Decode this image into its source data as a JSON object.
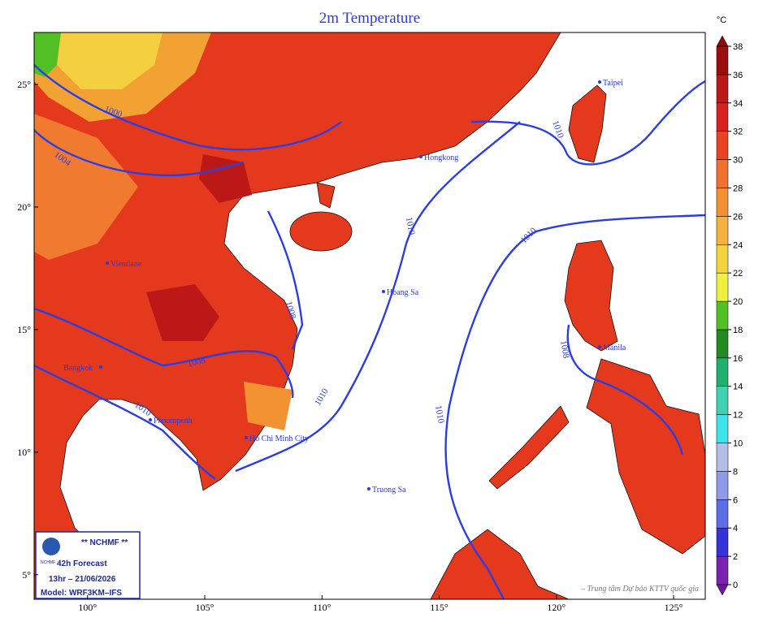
{
  "title": "2m Temperature",
  "colorbar": {
    "unit": "°C",
    "levels": [
      0,
      2,
      4,
      6,
      8,
      10,
      12,
      14,
      16,
      18,
      20,
      22,
      24,
      26,
      28,
      30,
      32,
      34,
      36,
      38
    ],
    "colors": [
      "#7b22b0",
      "#3434d8",
      "#5a6ee6",
      "#8c9ae8",
      "#b4bce8",
      "#3ee4ec",
      "#3ed2b2",
      "#22b070",
      "#228a22",
      "#52c024",
      "#eef23e",
      "#f4d43e",
      "#f4b23e",
      "#f29232",
      "#f07030",
      "#e84422",
      "#d82222",
      "#bc1818",
      "#9a0e0e"
    ],
    "low_color": "#6a1a9a",
    "high_color": "#8a0a0a"
  },
  "lon_lim": [
    97.72,
    126.35
  ],
  "lat_lim": [
    4.0,
    27.12
  ],
  "lon_ticks": [
    {
      "value": 100,
      "label": "100°"
    },
    {
      "value": 105,
      "label": "105°"
    },
    {
      "value": 110,
      "label": "110°"
    },
    {
      "value": 115,
      "label": "115°"
    },
    {
      "value": 120,
      "label": "120°"
    },
    {
      "value": 125,
      "label": "125°"
    }
  ],
  "lat_ticks": [
    {
      "value": 25,
      "label": "25°"
    },
    {
      "value": 20,
      "label": "20°"
    },
    {
      "value": 15,
      "label": "15°"
    },
    {
      "value": 10,
      "label": "10°"
    },
    {
      "value": 5,
      "label": "5°"
    }
  ],
  "places": [
    "Taipei",
    "Hongkong",
    "Vientiane",
    "Hoang Sa",
    "Manila",
    "Bangkok",
    "Phnompenh",
    "Ho Chi Minh City",
    "Truong Sa"
  ],
  "isobar_labels": [
    1000,
    1004,
    1008,
    1008,
    1008,
    1010,
    1010,
    1010,
    1010,
    1010,
    1010
  ],
  "info": {
    "agency": "** NCHMF **",
    "logo": "NCHMF",
    "forecast": "42h Forecast",
    "time": "13hr – 21/06/2026",
    "model": "Model: WRF3KM–IFS"
  },
  "credit": "– Trung tâm Dự báo KTTV quốc gia"
}
